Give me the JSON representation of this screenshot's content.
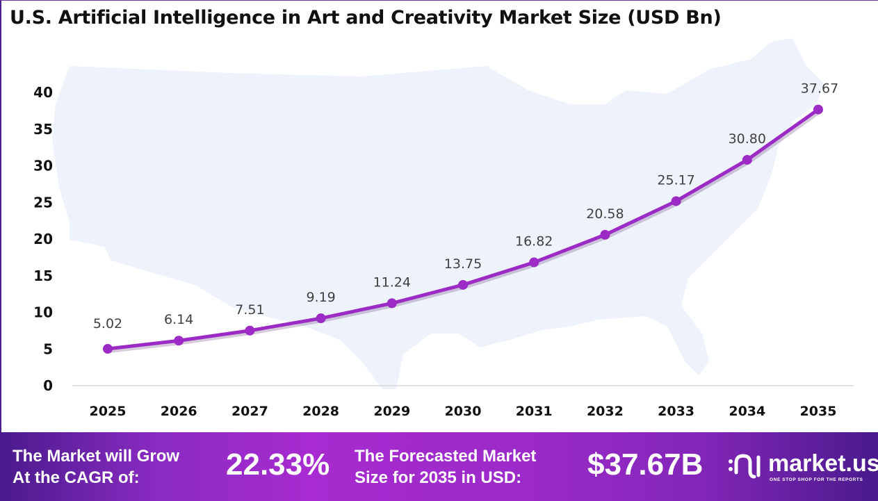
{
  "chart_data": {
    "type": "line",
    "title": "U.S. Artificial Intelligence in Art and Creativity Market Size (USD Bn)",
    "categories": [
      "2025",
      "2026",
      "2027",
      "2028",
      "2029",
      "2030",
      "2031",
      "2032",
      "2033",
      "2034",
      "2035"
    ],
    "values": [
      5.02,
      6.14,
      7.51,
      9.19,
      11.24,
      13.75,
      16.82,
      20.58,
      25.17,
      30.8,
      37.67
    ],
    "labels": [
      "5.02",
      "6.14",
      "7.51",
      "9.19",
      "11.24",
      "13.75",
      "16.82",
      "20.58",
      "25.17",
      "30.80",
      "37.67"
    ],
    "yticks": [
      "0",
      "5",
      "10",
      "15",
      "20",
      "25",
      "30",
      "35",
      "40"
    ],
    "ylim": [
      0,
      40
    ],
    "xlabel": "",
    "ylabel": "",
    "grid": false,
    "line_color": "#9b2bc4",
    "background": "US map silhouette, light blue #eef3fb"
  },
  "footer": {
    "cagr_label_1": "The Market will Grow",
    "cagr_label_2": "At the CAGR of:",
    "cagr_value": "22.33%",
    "forecast_label_1": "The Forecasted Market",
    "forecast_label_2": "Size for 2035 in USD:",
    "forecast_value": "$37.67B",
    "logo_name": "market.us",
    "logo_tagline": "ONE STOP SHOP FOR THE REPORTS"
  }
}
